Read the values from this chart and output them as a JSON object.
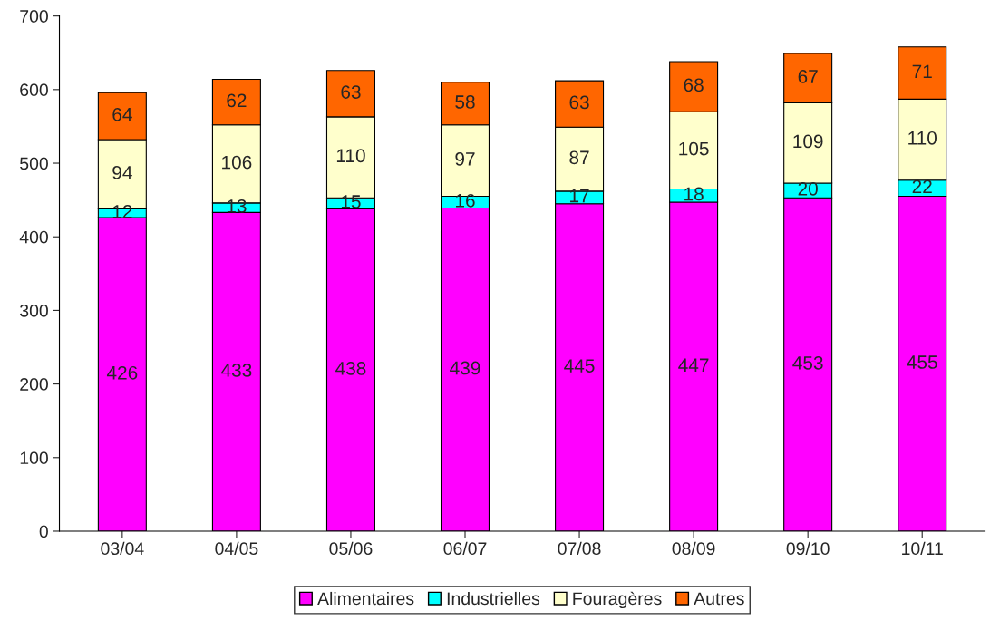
{
  "chart_data": {
    "type": "bar",
    "stacked": true,
    "categories": [
      "03/04",
      "04/05",
      "05/06",
      "06/07",
      "07/08",
      "08/09",
      "09/10",
      "10/11"
    ],
    "series": [
      {
        "name": "Alimentaires",
        "color": "#ff00ff",
        "values": [
          426,
          433,
          438,
          439,
          445,
          447,
          453,
          455
        ]
      },
      {
        "name": "Industrielles",
        "color": "#00ffff",
        "values": [
          12,
          13,
          15,
          16,
          17,
          18,
          20,
          22
        ]
      },
      {
        "name": "Fouragères",
        "color": "#ffffcc",
        "values": [
          94,
          106,
          110,
          97,
          87,
          105,
          109,
          110
        ]
      },
      {
        "name": "Autres",
        "color": "#ff6600",
        "values": [
          64,
          62,
          63,
          58,
          63,
          68,
          67,
          71
        ]
      }
    ],
    "ylim": [
      0,
      700
    ],
    "yticks": [
      0,
      100,
      200,
      300,
      400,
      500,
      600,
      700
    ],
    "data_labels": true,
    "legend": "bottom",
    "grid": false
  }
}
